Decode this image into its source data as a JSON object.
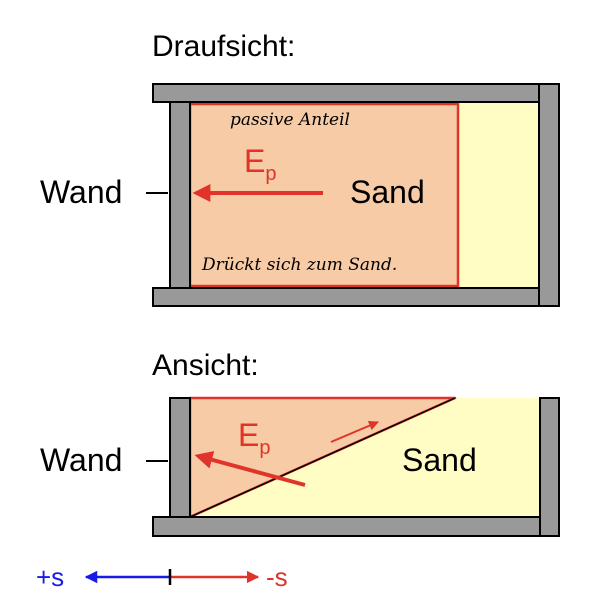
{
  "top": {
    "title": "Draufsicht:",
    "wall_label": "Wand",
    "force_symbol": "E",
    "force_sub": "p",
    "material_label": "Sand",
    "note_top": "passive Anteil",
    "note_bottom": "Drückt sich zum Sand."
  },
  "side": {
    "title": "Ansicht:",
    "wall_label": "Wand",
    "force_symbol": "E",
    "force_sub": "p",
    "material_label": "Sand"
  },
  "direction": {
    "plus_label": "+s",
    "minus_label": "-s"
  },
  "colors": {
    "wall_fill": "#999999",
    "sand_fill": "#fffcc4",
    "wedge_fill": "#f6cba6",
    "force_red": "#e0342a",
    "plus_blue": "#1a1ae6"
  }
}
